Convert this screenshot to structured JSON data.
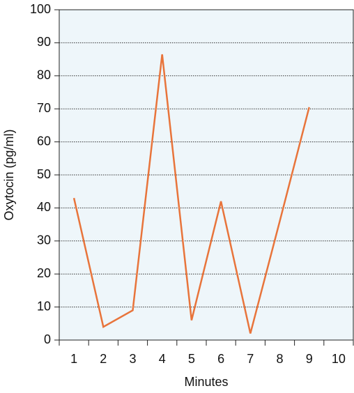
{
  "chart_data": {
    "type": "line",
    "x_label": "Minutes",
    "y_label": "Oxytocin (pg/ml)",
    "categories": [
      "1",
      "2",
      "3",
      "4",
      "5",
      "6",
      "7",
      "8",
      "9",
      "10"
    ],
    "values": [
      43,
      4,
      9,
      86.5,
      6,
      42,
      2,
      36,
      70.5,
      null
    ],
    "color": "#e8743b",
    "ylim": [
      0,
      100
    ],
    "yticks": [
      0,
      10,
      20,
      30,
      40,
      50,
      60,
      70,
      80,
      90,
      100
    ],
    "grid": true
  }
}
